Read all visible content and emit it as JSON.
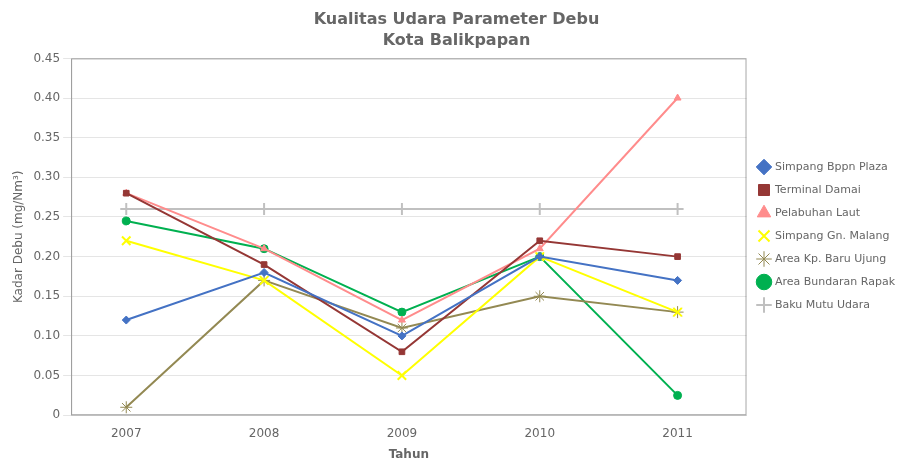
{
  "chart_data": {
    "type": "line",
    "title": "Kualitas Udara Parameter Debu",
    "subtitle": "Kota Balikpapan",
    "x_label": "Tahun",
    "y_label": "Kadar Debu (mg/Nm³)",
    "x": [
      2007,
      2008,
      2009,
      2010,
      2011
    ],
    "series": [
      {
        "name": "Simpang Bppn Plaza",
        "color": "#4472C4",
        "marker": "diamond",
        "values": [
          0.12,
          0.18,
          0.1,
          0.2,
          0.17
        ]
      },
      {
        "name": "Terminal Damai",
        "color": "#953735",
        "marker": "square",
        "values": [
          0.28,
          0.19,
          0.08,
          0.22,
          0.2
        ]
      },
      {
        "name": "Pelabuhan Laut",
        "color": "#FF8C8C",
        "marker": "triangle",
        "values": [
          0.28,
          0.21,
          0.12,
          0.21,
          0.4
        ]
      },
      {
        "name": "Simpang Gn. Malang",
        "color": "#FFFF00",
        "marker": "x",
        "values": [
          0.22,
          0.17,
          0.05,
          0.2,
          0.13
        ]
      },
      {
        "name": "Area Kp. Baru Ujung",
        "color": "#938953",
        "marker": "star",
        "values": [
          0.01,
          0.17,
          0.11,
          0.15,
          0.13
        ]
      },
      {
        "name": "Area Bundaran Rapak",
        "color": "#00B050",
        "marker": "circle",
        "values": [
          0.245,
          0.21,
          0.13,
          0.2,
          0.025
        ]
      },
      {
        "name": "Baku Mutu Udara",
        "color": "#C0C0C0",
        "marker": "plus",
        "values": [
          0.26,
          0.26,
          0.26,
          0.26,
          0.26
        ]
      }
    ],
    "xlim": [
      2006.6,
      2011.5
    ],
    "xticks": [
      2007,
      2008,
      2009,
      2010,
      2011
    ],
    "ylim": [
      0,
      0.45
    ],
    "yticks": [
      0,
      0.05,
      {
        "value": 0.1,
        "label": "0.10"
      },
      0.15,
      {
        "value": 0.2,
        "label": "0.20"
      },
      0.25,
      {
        "value": 0.3,
        "label": "0.30"
      },
      0.35,
      {
        "value": 0.4,
        "label": "0.40"
      },
      0.45
    ],
    "grid": "y",
    "legend": "right"
  }
}
